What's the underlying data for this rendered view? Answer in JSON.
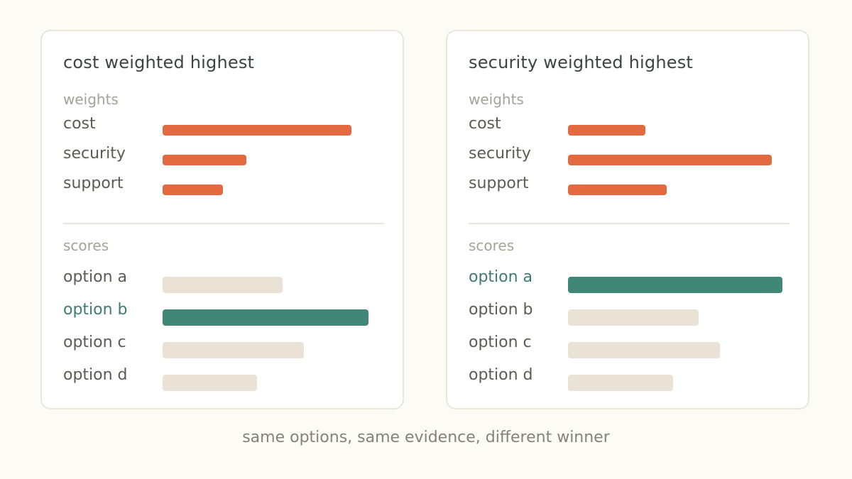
{
  "caption": "same options, same evidence, different winner",
  "colors": {
    "weight_bar": "#e36a40",
    "score_bar": "#ebe2d6",
    "winner_bar": "#408777",
    "winner_text": "#3e7d6e"
  },
  "chart_data": [
    {
      "type": "bar",
      "title": "cost weighted highest",
      "weights": {
        "label": "weights",
        "categories": [
          "cost",
          "security",
          "support"
        ],
        "values": [
          0.88,
          0.39,
          0.28
        ]
      },
      "scores": {
        "label": "scores",
        "categories": [
          "option a",
          "option b",
          "option c",
          "option d"
        ],
        "values": [
          0.56,
          0.96,
          0.66,
          0.44
        ],
        "winner": "option b"
      }
    },
    {
      "type": "bar",
      "title": "security weighted highest",
      "weights": {
        "label": "weights",
        "categories": [
          "cost",
          "security",
          "support"
        ],
        "values": [
          0.36,
          0.95,
          0.46
        ]
      },
      "scores": {
        "label": "scores",
        "categories": [
          "option a",
          "option b",
          "option c",
          "option d"
        ],
        "values": [
          1.0,
          0.61,
          0.71,
          0.49
        ],
        "winner": "option a"
      }
    }
  ]
}
